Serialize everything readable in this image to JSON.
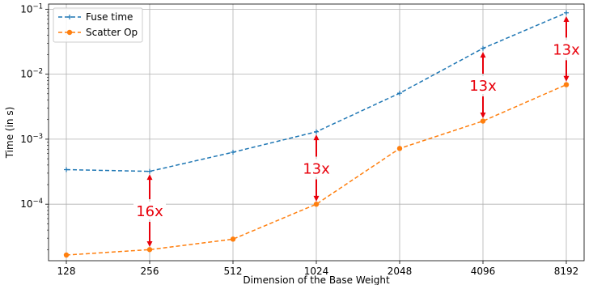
{
  "colors": {
    "fuse_series": "#1f77b4",
    "scatter_series": "#ff7f0e",
    "annotation": "#e8000b",
    "grid": "#b0b0b0"
  },
  "chart_data": {
    "type": "line",
    "xlabel": "Dimension of the Base Weight",
    "ylabel": "Time (in s)",
    "x_scale": "log2",
    "y_scale": "log10",
    "grid": true,
    "legend_position": "top-left",
    "categories": [
      "128",
      "256",
      "512",
      "1024",
      "2048",
      "4096",
      "8192"
    ],
    "x": [
      128,
      256,
      512,
      1024,
      2048,
      4096,
      8192
    ],
    "ylim": [
      1.35e-05,
      0.12
    ],
    "y_ticks": [
      0.0001,
      0.001,
      0.01,
      0.1
    ],
    "y_tick_labels": [
      {
        "base": "10",
        "exp": "−4"
      },
      {
        "base": "10",
        "exp": "−3"
      },
      {
        "base": "10",
        "exp": "−2"
      },
      {
        "base": "10",
        "exp": "−1"
      }
    ],
    "series": [
      {
        "name": "Fuse time",
        "marker": "plus",
        "linestyle": "dashed",
        "values": [
          0.00034,
          0.00032,
          0.00063,
          0.0013,
          0.0051,
          0.025,
          0.088
        ]
      },
      {
        "name": "Scatter Op",
        "marker": "circle",
        "linestyle": "dashed",
        "values": [
          1.65e-05,
          2e-05,
          2.9e-05,
          0.0001,
          0.00072,
          0.0019,
          0.0069
        ]
      }
    ],
    "annotations": [
      {
        "text": "16x",
        "x": 256,
        "y_top": 0.00029,
        "y_bottom": 2.2e-05
      },
      {
        "text": "13x",
        "x": 1024,
        "y_top": 0.00118,
        "y_bottom": 0.00011
      },
      {
        "text": "13x",
        "x": 4096,
        "y_top": 0.022,
        "y_bottom": 0.0021
      },
      {
        "text": "13x",
        "x": 8192,
        "y_top": 0.078,
        "y_bottom": 0.0077
      }
    ]
  }
}
